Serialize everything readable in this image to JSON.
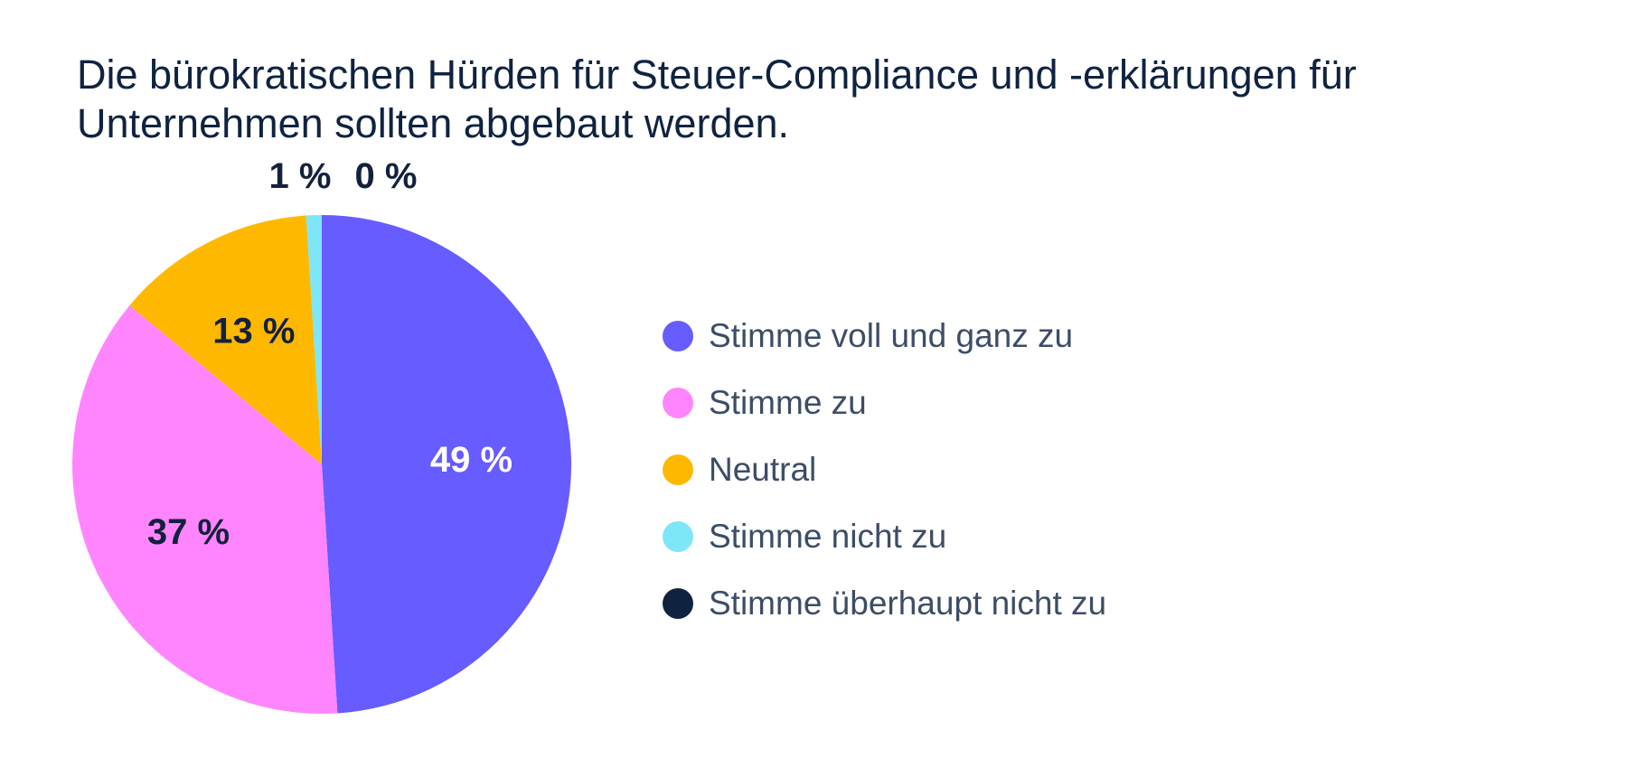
{
  "chart_data": {
    "type": "pie",
    "title": "Die bürokratischen Hürden für Steuer-Compliance und -erklärungen für Unternehmen sollten abgebaut werden.",
    "slices": [
      {
        "name": "Stimme voll und ganz zu",
        "value": 49,
        "label": "49 %",
        "color": "#665cff",
        "label_color": "#ffffff"
      },
      {
        "name": "Stimme zu",
        "value": 37,
        "label": "37 %",
        "color": "#ff85ff",
        "label_color": "#14213d"
      },
      {
        "name": "Neutral",
        "value": 13,
        "label": "13 %",
        "color": "#ffb800",
        "label_color": "#14213d"
      },
      {
        "name": "Stimme nicht zu",
        "value": 1,
        "label": "1 %",
        "color": "#7fe6f8",
        "label_color": "#14213d"
      },
      {
        "name": "Stimme überhaupt nicht zu",
        "value": 0,
        "label": "0 %",
        "color": "#0f2340",
        "label_color": "#14213d"
      }
    ],
    "legend_position": "right",
    "start_angle": "top",
    "direction": "clockwise"
  }
}
